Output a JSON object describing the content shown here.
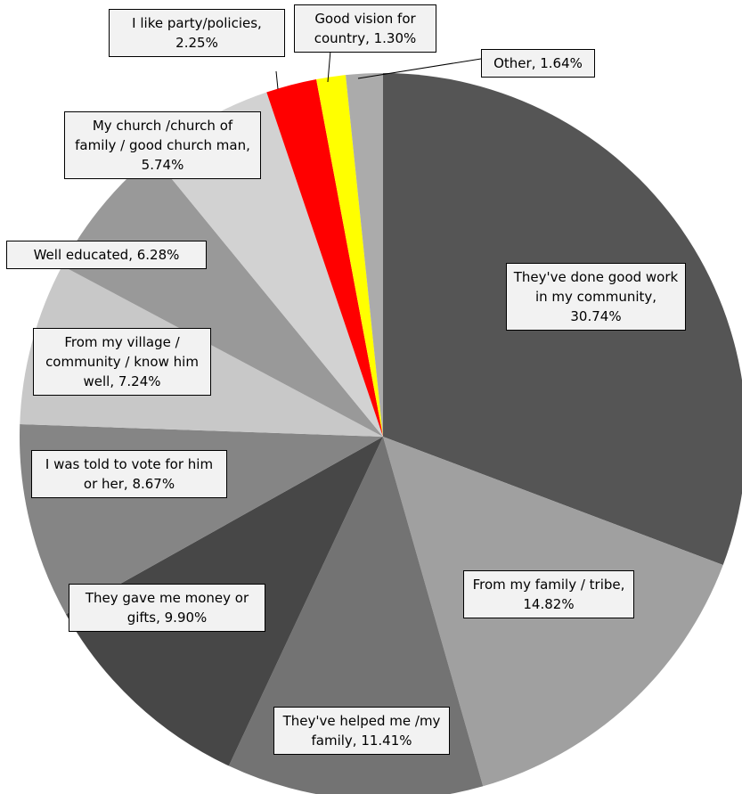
{
  "chart_data": {
    "type": "pie",
    "values": [
      30.74,
      14.82,
      11.41,
      9.9,
      8.67,
      7.24,
      6.28,
      5.74,
      2.25,
      1.3,
      1.64
    ],
    "value_labels": [
      "They've done good work in my community, 30.74%",
      "From my family / tribe, 14.82%",
      "They've helped me /my family, 11.41%",
      "They gave me money or gifts, 9.90%",
      "I was told to vote for him or her, 8.67%",
      "From my village / community / know him well, 7.24%",
      "Well educated, 6.28%",
      "My church /church of family / good church man, 5.74%",
      "I like party/policies, 2.25%",
      "Good vision for country, 1.30%",
      "Other, 1.64%"
    ],
    "colors": [
      "#555555",
      "#a0a0a0",
      "#737373",
      "#474747",
      "#858585",
      "#c8c8c8",
      "#999999",
      "#d2d2d2",
      "#ff0000",
      "#ffff00",
      "#ababab"
    ]
  }
}
